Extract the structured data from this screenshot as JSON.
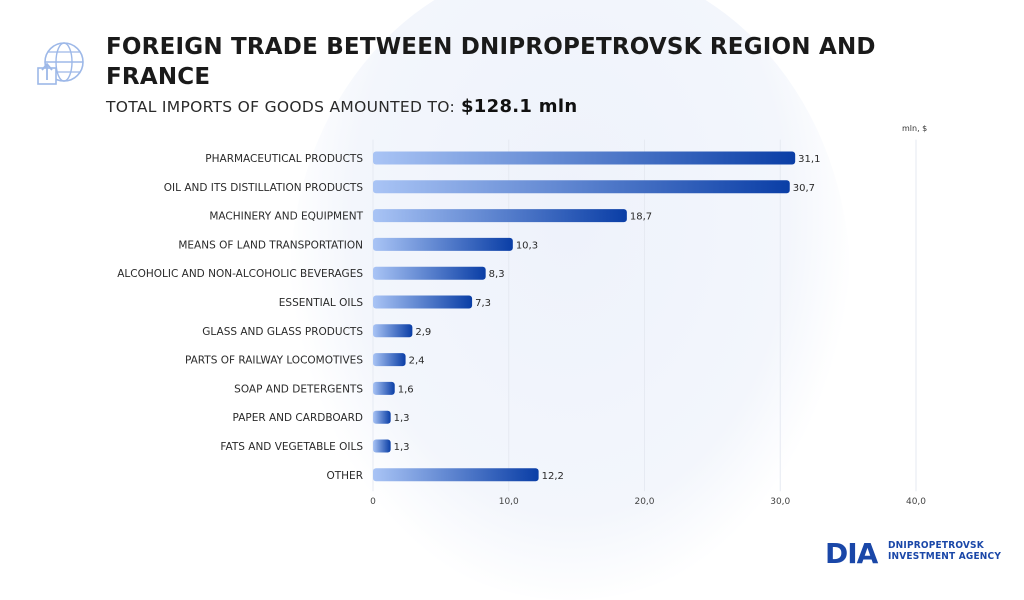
{
  "header": {
    "title": "FOREIGN TRADE BETWEEN DNIPROPETROVSK REGION AND FRANCE",
    "subtitle_prefix": "TOTAL IMPORTS OF GOODS AMOUNTED TO:",
    "subtitle_amount": "$128.1 mln",
    "icon": "globe-box-import-icon"
  },
  "chart_data": {
    "type": "bar",
    "orientation": "horizontal",
    "unit": "mln, $",
    "categories": [
      "PHARMACEUTICAL PRODUCTS",
      "OIL AND ITS DISTILLATION PRODUCTS",
      "MACHINERY AND EQUIPMENT",
      "MEANS OF LAND TRANSPORTATION",
      "ALCOHOLIC AND NON-ALCOHOLIC BEVERAGES",
      "ESSENTIAL OILS",
      "GLASS AND GLASS PRODUCTS",
      "PARTS OF RAILWAY LOCOMOTIVES",
      "SOAP AND DETERGENTS",
      "PAPER AND CARDBOARD",
      "FATS AND VEGETABLE OILS",
      "OTHER"
    ],
    "values": [
      31.1,
      30.7,
      18.7,
      10.3,
      8.3,
      7.3,
      2.9,
      2.4,
      1.6,
      1.3,
      1.3,
      12.2
    ],
    "value_labels": [
      "31,1",
      "30,7",
      "18,7",
      "10,3",
      "8,3",
      "7,3",
      "2,9",
      "2,4",
      "1,6",
      "1,3",
      "1,3",
      "12,2"
    ],
    "xlim": [
      0,
      40
    ],
    "xticks": [
      0,
      10,
      20,
      30,
      40
    ],
    "xtick_labels": [
      "0",
      "10,0",
      "20,0",
      "30,0",
      "40,0"
    ],
    "grid": true,
    "colors": {
      "bar_start": "#a9c4f5",
      "bar_end": "#0a3ea6",
      "grid": "#e6eaf2"
    }
  },
  "logo": {
    "mark": "DIA",
    "line1": "DNIPROPETROVSK",
    "line2": "INVESTMENT AGENCY",
    "color": "#1a47a8"
  }
}
